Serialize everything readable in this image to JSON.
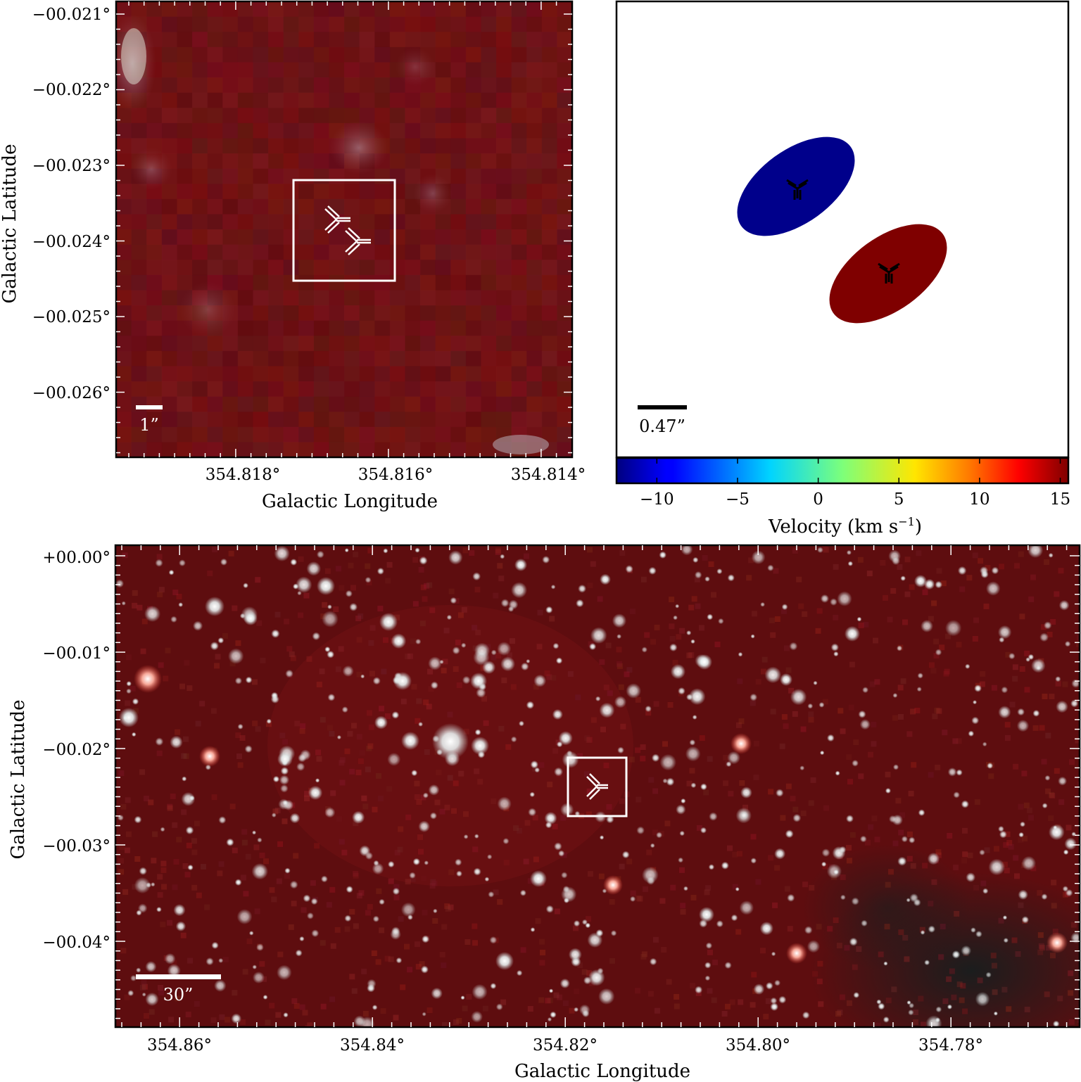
{
  "panel_top_left": {
    "image": "infrared-cutout-zoom",
    "x_axis_title": "Galactic Longitude",
    "y_axis_title": "Galactic Latitude",
    "x_ticks": [
      "354.818°",
      "354.816°",
      "354.814°"
    ],
    "y_ticks": [
      "−00.021°",
      "−00.022°",
      "−00.023°",
      "−00.024°",
      "−00.025°",
      "−00.026°"
    ],
    "scale_bar_label": "1”",
    "markers": [
      "three-arm-star",
      "three-arm-star"
    ],
    "box_color": "#ffffff",
    "background_color": "#6b0f10"
  },
  "panel_top_right": {
    "scale_bar_label": "0.47”",
    "ellipses": [
      {
        "name": "blue-component",
        "velocity_km_s": -11,
        "color": "#00008b"
      },
      {
        "name": "red-component",
        "velocity_km_s": 14,
        "color": "#7f0000"
      }
    ],
    "colorbar": {
      "ticks": [
        "−10",
        "−5",
        "0",
        "5",
        "10",
        "15"
      ],
      "tick_values": [
        -10,
        -5,
        0,
        5,
        10,
        15
      ],
      "range": [
        -12.5,
        15.5
      ],
      "colormap": "jet",
      "label_main": "Velocity (km s",
      "label_sup": "−1",
      "label_end": ")"
    }
  },
  "panel_bottom": {
    "image": "infrared-wide-field",
    "x_axis_title": "Galactic Longitude",
    "y_axis_title": "Galactic Latitude",
    "x_ticks": [
      "354.86°",
      "354.84°",
      "354.82°",
      "354.80°",
      "354.78°"
    ],
    "y_ticks": [
      "+00.00°",
      "−00.01°",
      "−00.02°",
      "−00.03°",
      "−00.04°"
    ],
    "scale_bar_label": "30”",
    "box_color": "#ffffff",
    "background_color": "#5e0d0f"
  }
}
